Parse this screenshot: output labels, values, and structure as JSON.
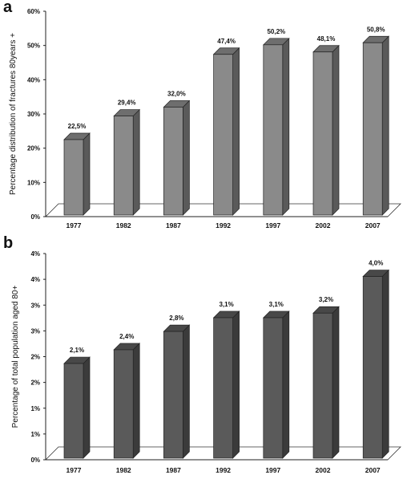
{
  "chart_data": [
    {
      "panel": "a",
      "type": "bar",
      "categories": [
        "1977",
        "1982",
        "1987",
        "1992",
        "1997",
        "2002",
        "2007"
      ],
      "values": [
        22.5,
        29.4,
        32.0,
        47.4,
        50.2,
        48.1,
        50.8
      ],
      "data_labels": [
        "22,5%",
        "29,4%",
        "32,0%",
        "47,4%",
        "50,2%",
        "48,1%",
        "50,8%"
      ],
      "ylabel": "Percentage distribution of fractures 80years +",
      "ylim": [
        0,
        60
      ],
      "yticks": [
        "0%",
        "10%",
        "20%",
        "30%",
        "40%",
        "50%",
        "60%"
      ],
      "grid": false,
      "bar_color": "#8a8a8a"
    },
    {
      "panel": "b",
      "type": "bar",
      "categories": [
        "1977",
        "1982",
        "1987",
        "1992",
        "1997",
        "2002",
        "2007"
      ],
      "values": [
        2.1,
        2.4,
        2.8,
        3.1,
        3.1,
        3.2,
        4.0
      ],
      "data_labels": [
        "2,1%",
        "2,4%",
        "2,8%",
        "3,1%",
        "3,1%",
        "3,2%",
        "4,0%"
      ],
      "ylabel": "Percentage of total population aged 80+",
      "ylim": [
        0,
        4.5
      ],
      "yticks": [
        "0%",
        "1%",
        "1%",
        "2%",
        "2%",
        "3%",
        "3%",
        "4%",
        "4%"
      ],
      "grid": false,
      "bar_color": "#5a5a5a"
    }
  ]
}
